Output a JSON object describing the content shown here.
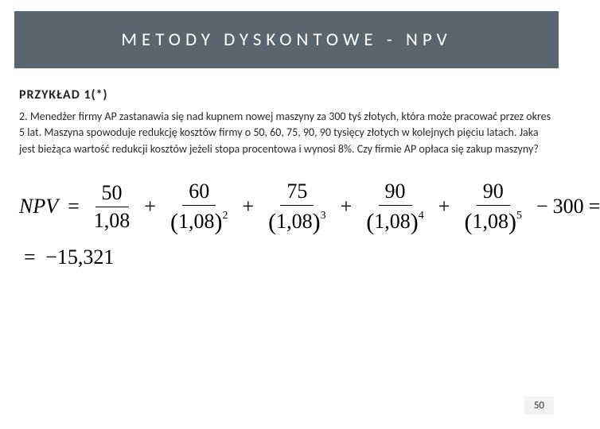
{
  "header": {
    "title": "METODY DYSKONTOWE - NPV"
  },
  "subtitle": "PRZYKŁAD 1(*)",
  "problem": {
    "number": "2.",
    "text": "Menedżer firmy AP zastanawia się nad kupnem nowej maszyny za 300 tyś złotych, która może pracować przez okres 5 lat. Maszyna spowoduje redukcję kosztów firmy o 50, 60, 75, 90, 90 tysięcy złotych w kolejnych pięciu latach. Jaka jest bieżąca wartość redukcji kosztów jeżeli stopa procentowa i wynosi 8%. Czy firmie AP opłaca się zakup maszyny?"
  },
  "formula": {
    "lhs": "NPV",
    "terms": [
      {
        "num": "50",
        "den_base": "1,08",
        "exp": ""
      },
      {
        "num": "60",
        "den_base": "1,08",
        "exp": "2"
      },
      {
        "num": "75",
        "den_base": "1,08",
        "exp": "3"
      },
      {
        "num": "90",
        "den_base": "1,08",
        "exp": "4"
      },
      {
        "num": "90",
        "den_base": "1,08",
        "exp": "5"
      }
    ],
    "tail_minus": "300",
    "result": "−15,321"
  },
  "page_number": "50",
  "colors": {
    "title_bg": "#5a6570",
    "title_fg": "#ffffff",
    "body_bg": "#ffffff",
    "text": "#2a2a2a"
  }
}
